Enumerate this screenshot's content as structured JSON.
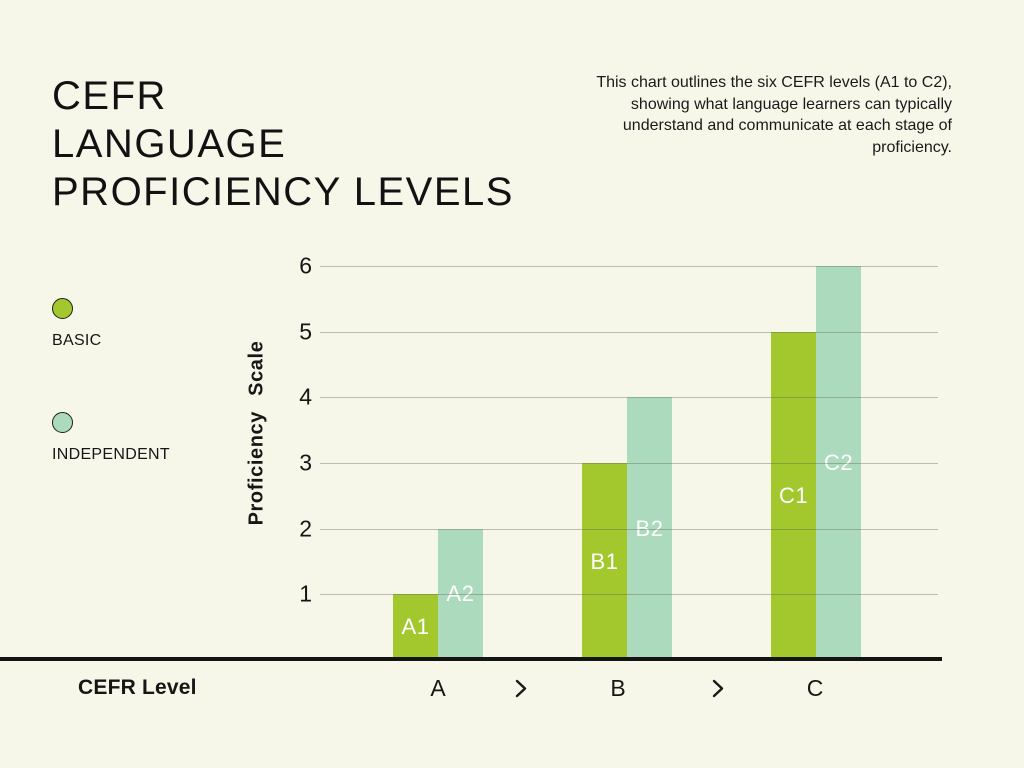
{
  "page": {
    "background": "#f6f7e9"
  },
  "header": {
    "title_lines": [
      "CEFR",
      "LANGUAGE",
      "PROFICIENCY LEVELS"
    ],
    "description_lines": [
      "This chart outlines the six CEFR levels (A1 to C2),",
      "showing what language learners can typically",
      "understand and communicate at each stage of",
      "proficiency."
    ]
  },
  "legend": {
    "items": [
      {
        "label": "BASIC",
        "color": "#a2c82e"
      },
      {
        "label": "INDEPENDENT",
        "color": "#acdabd"
      }
    ]
  },
  "chart_data": {
    "type": "bar",
    "title": "CEFR Language Proficiency Levels",
    "xlabel": "CEFR Level",
    "ylabel": "Proficiency Scale",
    "ylim": [
      0,
      6
    ],
    "yticks": [
      1,
      2,
      3,
      4,
      5,
      6
    ],
    "grid": true,
    "legend_position": "left",
    "categories": [
      "A",
      "B",
      "C"
    ],
    "series": [
      {
        "name": "BASIC",
        "color": "#a2c82e",
        "values": [
          1,
          3,
          5
        ],
        "bar_labels": [
          "A1",
          "B1",
          "C1"
        ]
      },
      {
        "name": "INDEPENDENT",
        "color": "#acdabd",
        "values": [
          2,
          4,
          6
        ],
        "bar_labels": [
          "A2",
          "B2",
          "C2"
        ]
      }
    ],
    "category_separator_icon": "chevron-right",
    "colors": {
      "axis": "#141412",
      "gridline": "#bfbfb8",
      "bar_label_text": "#ffffff"
    }
  }
}
